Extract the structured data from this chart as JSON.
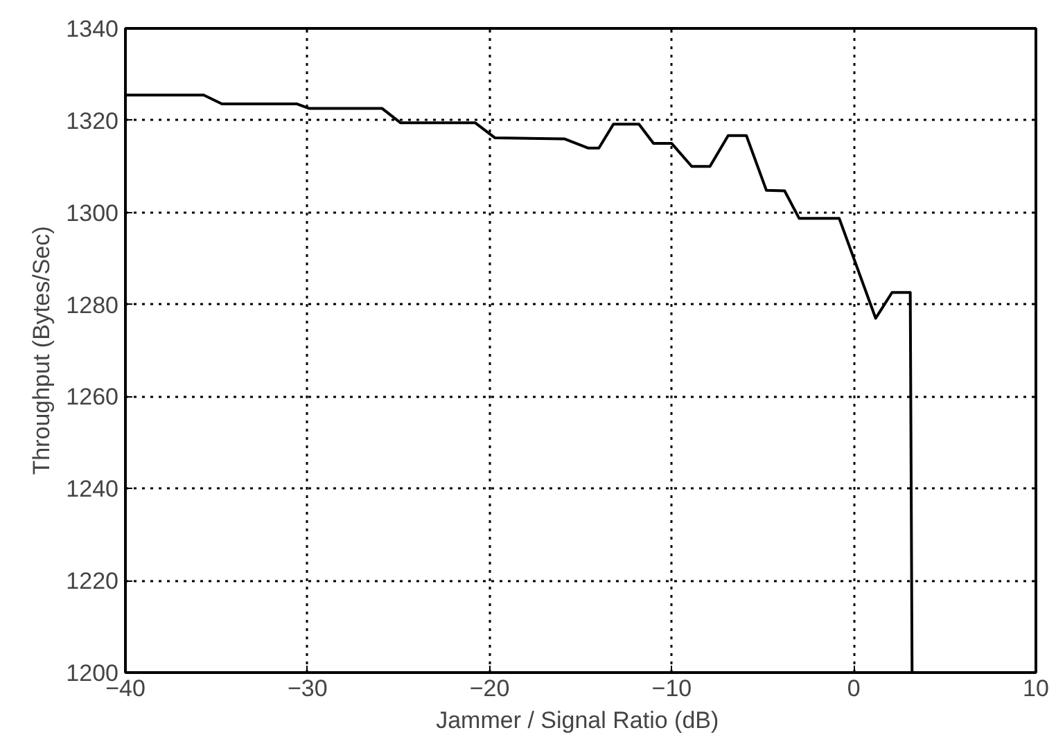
{
  "chart_data": {
    "type": "line",
    "xlabel": "Jammer / Signal Ratio  (dB)",
    "ylabel": "Throughput (Bytes/Sec)",
    "x": [
      -40,
      -35.7,
      -34.7,
      -30.6,
      -29.9,
      -25.9,
      -24.9,
      -20.8,
      -19.7,
      -15.9,
      -14.6,
      -14.0,
      -13.2,
      -11.8,
      -11.0,
      -10.0,
      -8.9,
      -7.9,
      -6.9,
      -5.9,
      -4.8,
      -3.8,
      -3.0,
      -0.8,
      1.2,
      2.1,
      3.1,
      3.2
    ],
    "series": [
      {
        "color": "#000000",
        "values": [
          1325.5,
          1325.5,
          1323.6,
          1323.6,
          1322.6,
          1322.6,
          1319.5,
          1319.5,
          1316.2,
          1316,
          1314,
          1314,
          1319.2,
          1319.2,
          1315,
          1315,
          1310,
          1310,
          1316.7,
          1316.7,
          1304.8,
          1304.7,
          1298.7,
          1298.7,
          1277,
          1282.6,
          1282.6,
          1200
        ]
      }
    ],
    "xlim": [
      -40,
      10
    ],
    "ylim": [
      1200,
      1340
    ],
    "xticks": [
      -40,
      -30,
      -20,
      -10,
      0,
      10
    ],
    "yticks": [
      1200,
      1220,
      1240,
      1260,
      1280,
      1300,
      1320,
      1340
    ],
    "grid": true,
    "line_style": "solid",
    "marker": "none"
  }
}
